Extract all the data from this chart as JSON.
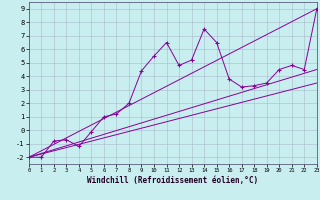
{
  "xlabel": "Windchill (Refroidissement éolien,°C)",
  "xlim": [
    0,
    23
  ],
  "ylim": [
    -2.5,
    9.5
  ],
  "xticks": [
    0,
    1,
    2,
    3,
    4,
    5,
    6,
    7,
    8,
    9,
    10,
    11,
    12,
    13,
    14,
    15,
    16,
    17,
    18,
    19,
    20,
    21,
    22,
    23
  ],
  "yticks": [
    -2,
    -1,
    0,
    1,
    2,
    3,
    4,
    5,
    6,
    7,
    8,
    9
  ],
  "background_color": "#c8eef0",
  "grid_color": "#aabbcc",
  "line_color": "#880099",
  "series": {
    "line1": {
      "x": [
        0,
        1,
        2,
        3,
        4,
        5,
        6,
        7,
        8,
        9,
        10,
        11,
        12,
        13,
        14,
        15,
        16,
        17,
        18,
        19,
        20,
        21,
        22,
        23
      ],
      "y": [
        -2,
        -2,
        -0.8,
        -0.7,
        -1.2,
        -0.1,
        1.0,
        1.2,
        2.0,
        4.4,
        5.5,
        6.5,
        4.8,
        5.2,
        7.5,
        6.5,
        3.8,
        3.2,
        3.3,
        3.5,
        4.5,
        4.8,
        4.5,
        9.0
      ]
    },
    "line2": {
      "x": [
        0,
        23
      ],
      "y": [
        -2,
        9.0
      ]
    },
    "line3": {
      "x": [
        0,
        23
      ],
      "y": [
        -2,
        3.5
      ]
    },
    "line4": {
      "x": [
        0,
        23
      ],
      "y": [
        -2,
        4.5
      ]
    }
  }
}
